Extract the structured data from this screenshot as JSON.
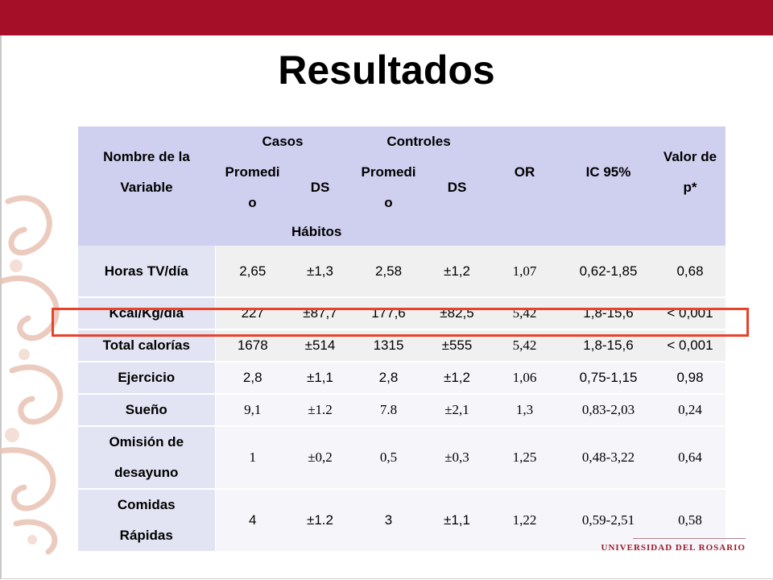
{
  "title": "Resultados",
  "logo_text": "UNIVERSIDAD DEL ROSARIO",
  "colors": {
    "topbar": "#a50f28",
    "header_bg": "#cfd0ef",
    "highlight": "#e8432a"
  },
  "table": {
    "header": {
      "variable": [
        "Nombre de la",
        "Variable"
      ],
      "casos": "Casos",
      "controles": "Controles",
      "promedio": [
        "Promedi",
        "o"
      ],
      "ds": "DS",
      "or": "OR",
      "ic": "IC 95%",
      "valor": [
        "Valor de",
        "p*"
      ],
      "section": "Hábitos"
    },
    "rows": [
      {
        "label": [
          "Horas TV/día"
        ],
        "casos_prom": "2,65",
        "casos_ds": "±1,3",
        "ctrl_prom": "2,58",
        "ctrl_ds": "±1,2",
        "or": "1,07",
        "ic": "0,62-1,85",
        "p": "0,68"
      },
      {
        "label": [
          "Kcal/Kg/día"
        ],
        "casos_prom": "227",
        "casos_ds": "±87,7",
        "ctrl_prom": "177,6",
        "ctrl_ds": "±82,5",
        "or": "5,42",
        "ic": "1,8-15,6",
        "p": "< 0,001"
      },
      {
        "label": [
          "Total calorías"
        ],
        "casos_prom": "1678",
        "casos_ds": "±514",
        "ctrl_prom": "1315",
        "ctrl_ds": "±555",
        "or": "5,42",
        "ic": "1,8-15,6",
        "p": "< 0,001"
      },
      {
        "label": [
          "Ejercicio"
        ],
        "casos_prom": "2,8",
        "casos_ds": "±1,1",
        "ctrl_prom": "2,8",
        "ctrl_ds": "±1,2",
        "or": "1,06",
        "ic": "0,75-1,15",
        "p": "0,98"
      },
      {
        "label": [
          "Sueño"
        ],
        "casos_prom": "9,1",
        "casos_ds": "±1.2",
        "ctrl_prom": "7.8",
        "ctrl_ds": "±2,1",
        "or": "1,3",
        "ic": "0,83-2,03",
        "p": "0,24"
      },
      {
        "label": [
          "Omisión de",
          "desayuno"
        ],
        "casos_prom": "1",
        "casos_ds": "±0,2",
        "ctrl_prom": "0,5",
        "ctrl_ds": "±0,3",
        "or": "1,25",
        "ic": "0,48-3,22",
        "p": "0,64"
      },
      {
        "label": [
          "Comidas",
          "Rápidas"
        ],
        "casos_prom": "4",
        "casos_ds": "±1.2",
        "ctrl_prom": "3",
        "ctrl_ds": "±1,1",
        "or": "1,22",
        "ic": "0,59-2,51",
        "p": "0,58"
      }
    ]
  }
}
